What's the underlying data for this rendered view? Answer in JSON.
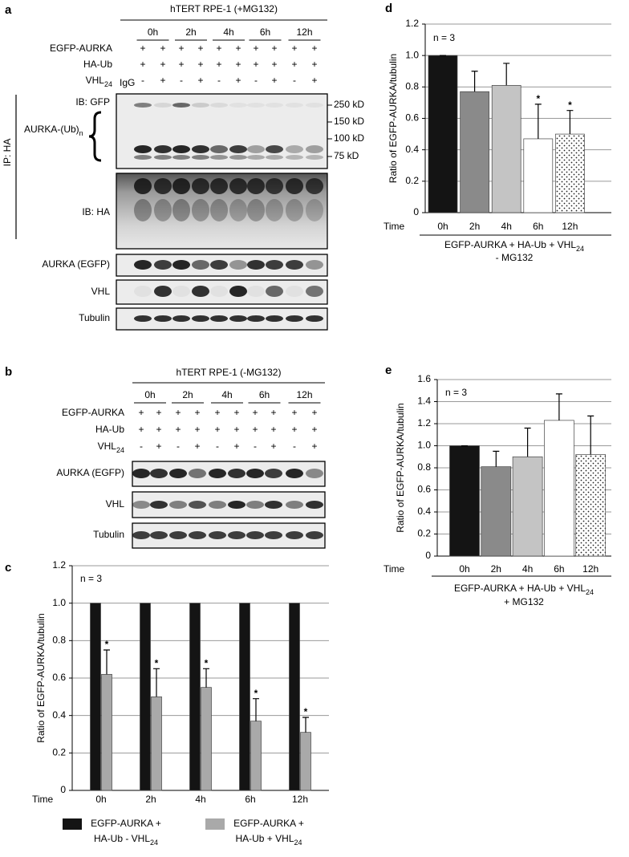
{
  "panel_labels": [
    "a",
    "b",
    "c",
    "d",
    "e"
  ],
  "blot_panels": [
    {
      "title": "hTERT RPE-1 (+MG132)",
      "timepoints": [
        "0h",
        "2h",
        "4h",
        "6h",
        "12h"
      ],
      "treatments": [
        {
          "label": "EGFP-AURKA",
          "signs": [
            "+",
            "+",
            "+",
            "+",
            "+",
            "+",
            "+",
            "+",
            "+",
            "+"
          ]
        },
        {
          "label": "HA-Ub",
          "signs": [
            "+",
            "+",
            "+",
            "+",
            "+",
            "+",
            "+",
            "+",
            "+",
            "+"
          ]
        },
        {
          "label": "VHL",
          "label_sub": "24",
          "signs": [
            "-",
            "+",
            "-",
            "+",
            "-",
            "+",
            "-",
            "+",
            "-",
            "+"
          ]
        }
      ],
      "control_label": "IgG",
      "ip_label": "IP: HA",
      "ub_label": "AURKA-(Ub)",
      "ub_sub": "n",
      "blots": [
        "IB: GFP",
        "IB: HA",
        "AURKA (EGFP)",
        "VHL",
        "Tubulin"
      ],
      "size_markers": [
        "250 kD",
        "150 kD",
        "100 kD",
        "75 kD"
      ]
    },
    {
      "title": "hTERT RPE-1 (-MG132)",
      "timepoints": [
        "0h",
        "2h",
        "4h",
        "6h",
        "12h"
      ],
      "treatments": [
        {
          "label": "EGFP-AURKA",
          "signs": [
            "+",
            "+",
            "+",
            "+",
            "+",
            "+",
            "+",
            "+",
            "+",
            "+"
          ]
        },
        {
          "label": "HA-Ub",
          "signs": [
            "+",
            "+",
            "+",
            "+",
            "+",
            "+",
            "+",
            "+",
            "+",
            "+"
          ]
        },
        {
          "label": "VHL",
          "label_sub": "24",
          "signs": [
            "-",
            "+",
            "-",
            "+",
            "-",
            "+",
            "-",
            "+",
            "-",
            "+"
          ]
        }
      ],
      "blots": [
        "AURKA (EGFP)",
        "VHL",
        "Tubulin"
      ]
    }
  ],
  "chart_data": [
    {
      "type": "bar",
      "annotation": "n = 3",
      "y_label": "Ratio of EGFP-AURKA/tubulin",
      "x_label": "Time",
      "categories": [
        "0h",
        "2h",
        "4h",
        "6h",
        "12h"
      ],
      "series": [
        {
          "name_lines": [
            "EGFP-AURKA +",
            "HA-Ub - VHL"
          ],
          "name_sub": "24",
          "color": "#141414",
          "values": [
            1,
            1,
            1,
            1,
            1
          ]
        },
        {
          "name_lines": [
            "EGFP-AURKA +",
            "HA-Ub + VHL"
          ],
          "name_sub": "24",
          "color": "#a9a9a9",
          "values": [
            0.62,
            0.5,
            0.55,
            0.37,
            0.31
          ],
          "errors": [
            0.13,
            0.15,
            0.1,
            0.12,
            0.08
          ],
          "markers": [
            "*",
            "*",
            "*",
            "*",
            "*"
          ]
        }
      ],
      "ylim": [
        0,
        1.2
      ],
      "yticks": [
        0,
        0.2,
        0.4,
        0.6,
        0.8,
        {
          "value": 1,
          "label": "1.0"
        },
        1.2
      ],
      "grid": true
    },
    {
      "type": "bar",
      "annotation": "n = 3",
      "y_label": "Ratio of EGFP-AURKA/tubulin",
      "x_label": "Time",
      "categories": [
        "0h",
        "2h",
        "4h",
        "6h",
        "12h"
      ],
      "values": [
        1.0,
        0.77,
        0.81,
        0.47,
        0.5
      ],
      "errors": [
        0,
        0.13,
        0.14,
        0.22,
        0.15
      ],
      "markers": [
        null,
        null,
        null,
        "*",
        "*"
      ],
      "colors": [
        "#141414",
        "#8a8a8a",
        "#c4c4c4",
        "#ffffff",
        "#ffffff"
      ],
      "patterns": [
        null,
        null,
        null,
        null,
        "dots"
      ],
      "caption_lines": [
        {
          "text": "EGFP-AURKA + HA-Ub + VHL",
          "sub": "24"
        },
        {
          "text": "- MG132"
        }
      ],
      "ylim": [
        0,
        1.2
      ],
      "yticks": [
        0,
        0.2,
        0.4,
        0.6,
        0.8,
        {
          "value": 1,
          "label": "1.0"
        },
        1.2
      ],
      "grid": true
    },
    {
      "type": "bar",
      "annotation": "n = 3",
      "y_label": "Ratio of EGFP-AURKA/tubulin",
      "x_label": "Time",
      "categories": [
        "0h",
        "2h",
        "4h",
        "6h",
        "12h"
      ],
      "values": [
        1.0,
        0.81,
        0.9,
        1.23,
        0.92
      ],
      "errors": [
        0,
        0.14,
        0.26,
        0.24,
        0.35
      ],
      "colors": [
        "#141414",
        "#8a8a8a",
        "#c4c4c4",
        "#ffffff",
        "#ffffff"
      ],
      "patterns": [
        null,
        null,
        null,
        null,
        "dots"
      ],
      "caption_lines": [
        {
          "text": "EGFP-AURKA + HA-Ub + VHL",
          "sub": "24"
        },
        {
          "text": "+ MG132"
        }
      ],
      "ylim": [
        0,
        1.6
      ],
      "yticks": [
        0,
        0.2,
        0.4,
        0.6,
        0.8,
        {
          "value": 1,
          "label": "1.0"
        },
        1.2,
        1.4,
        1.6
      ],
      "grid": true
    }
  ]
}
